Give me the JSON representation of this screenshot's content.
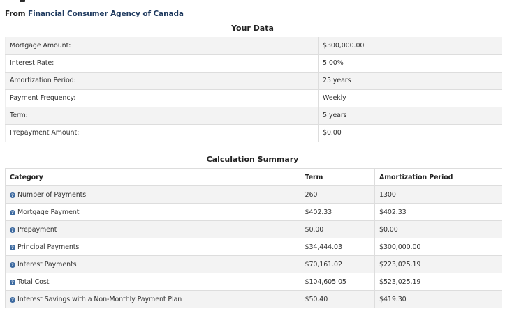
{
  "source": {
    "prefix": "From",
    "agency": "Financial Consumer Agency of Canada"
  },
  "your_data": {
    "title": "Your Data",
    "rows": [
      {
        "label": "Mortgage Amount:",
        "value": "$300,000.00"
      },
      {
        "label": "Interest Rate:",
        "value": "5.00%"
      },
      {
        "label": "Amortization Period:",
        "value": "25 years"
      },
      {
        "label": "Payment Frequency:",
        "value": "Weekly"
      },
      {
        "label": "Term:",
        "value": "5 years"
      },
      {
        "label": "Prepayment Amount:",
        "value": "$0.00"
      }
    ]
  },
  "calculation_summary": {
    "title": "Calculation Summary",
    "headers": {
      "category": "Category",
      "term": "Term",
      "amortization": "Amortization Period"
    },
    "help_icon_glyph": "?",
    "rows": [
      {
        "category": "Number of Payments",
        "term": "260",
        "amortization": "1300"
      },
      {
        "category": "Mortgage Payment",
        "term": "$402.33",
        "amortization": "$402.33"
      },
      {
        "category": "Prepayment",
        "term": "$0.00",
        "amortization": "$0.00"
      },
      {
        "category": "Principal Payments",
        "term": "$34,444.03",
        "amortization": "$300,000.00"
      },
      {
        "category": "Interest Payments",
        "term": "$70,161.02",
        "amortization": "$223,025.19"
      },
      {
        "category": "Total Cost",
        "term": "$104,605.05",
        "amortization": "$523,025.19"
      },
      {
        "category": "Interest Savings with a Non-Monthly Payment Plan",
        "term": "$50.40",
        "amortization": "$419.30"
      }
    ]
  },
  "colors": {
    "link": "#1f3a5f",
    "help_icon": "#3d6aa0",
    "row_stripe": "#f3f3f3",
    "border": "#dddddd"
  }
}
